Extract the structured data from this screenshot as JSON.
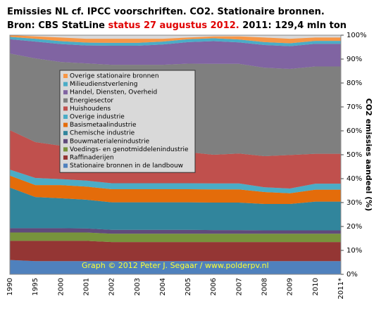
{
  "chart_data": {
    "type": "stacked_area",
    "title": "Emissies NL cf. IPCC voorschriften. CO2. Stationaire bronnen.",
    "source": "Bron: CBS StatLine",
    "status": "status 27 augustus 2012.",
    "total": "2011: 129,4 mln ton",
    "ylabel": "CO2 emissies aandeel (%)",
    "credit": "Graph © 2012 Peter J. Segaar / www.polderpv.nl",
    "categories": [
      "1990",
      "1995",
      "2000",
      "2001",
      "2002",
      "2003",
      "2004",
      "2005",
      "2006",
      "2007",
      "2008",
      "2009",
      "2010",
      "2011*"
    ],
    "ylim": [
      0,
      100
    ],
    "yticks": [
      {
        "value": 0,
        "label": "0%"
      },
      {
        "value": 10,
        "label": "10%"
      },
      {
        "value": 20,
        "label": "20%"
      },
      {
        "value": 30,
        "label": "30%"
      },
      {
        "value": 40,
        "label": "40%"
      },
      {
        "value": 50,
        "label": "50%"
      },
      {
        "value": 60,
        "label": "60%"
      },
      {
        "value": 70,
        "label": "70%"
      },
      {
        "value": 80,
        "label": "80%"
      },
      {
        "value": 90,
        "label": "90%"
      },
      {
        "value": 100,
        "label": "100%"
      }
    ],
    "series": [
      {
        "name": "Stationaire bronnen in de landbouw",
        "color": "#4f81bd",
        "values": [
          6,
          5.5,
          5.5,
          5.5,
          5.5,
          5.5,
          5.5,
          5.5,
          5.5,
          5.5,
          5.5,
          5.5,
          5.5,
          5.5
        ]
      },
      {
        "name": "Raffinaderijen",
        "color": "#943634",
        "values": [
          8,
          8.5,
          8.5,
          8.5,
          8,
          8,
          8,
          8,
          8,
          8,
          8,
          8,
          8,
          8
        ]
      },
      {
        "name": "Voedings- en genotmiddelenindustrie",
        "color": "#77933c",
        "values": [
          3.5,
          3.5,
          3.5,
          3.5,
          3.5,
          3.5,
          3.5,
          3.5,
          3.5,
          3.5,
          3.5,
          3.5,
          3.5,
          3.5
        ]
      },
      {
        "name": "Bouwmaterialenindustrie",
        "color": "#604a7b",
        "values": [
          1.8,
          1.8,
          1.8,
          1.7,
          1.6,
          1.6,
          1.6,
          1.6,
          1.5,
          1.5,
          1.4,
          1.4,
          1.4,
          1.4
        ]
      },
      {
        "name": "Chemische industrie",
        "color": "#31859c",
        "values": [
          17,
          13,
          12.5,
          12,
          11.5,
          11.5,
          11.5,
          11.5,
          11.5,
          11.5,
          11,
          11,
          12,
          12
        ]
      },
      {
        "name": "Basismetaalindustrie",
        "color": "#e46c0a",
        "values": [
          5,
          5,
          5.5,
          5.5,
          5.5,
          5.5,
          5.5,
          5.5,
          5.5,
          5.5,
          5,
          4.5,
          5,
          5
        ]
      },
      {
        "name": "Overige industrie",
        "color": "#4bacc6",
        "values": [
          2.5,
          3,
          2.5,
          2.5,
          2.5,
          2.5,
          2.5,
          2.5,
          2.5,
          2.5,
          2,
          2,
          2.5,
          2.5
        ]
      },
      {
        "name": "Huishoudens",
        "color": "#c0504d",
        "values": [
          16.5,
          15,
          14,
          13,
          13,
          12.5,
          12.5,
          13,
          12,
          12.5,
          13,
          14,
          12.5,
          12.5
        ]
      },
      {
        "name": "Energiesector",
        "color": "#7f7f7f",
        "values": [
          32,
          35,
          35,
          36,
          36.5,
          37,
          37,
          37,
          38,
          37.5,
          37,
          36,
          36.5,
          36.5
        ]
      },
      {
        "name": "Handel, Diensten, Overheid",
        "color": "#8064a2",
        "values": [
          6,
          7,
          7.5,
          7.5,
          8,
          8,
          8.5,
          9,
          9.5,
          9,
          9.5,
          9.5,
          9.5,
          9.5
        ]
      },
      {
        "name": "Milieudienstverlening",
        "color": "#4bacc6",
        "values": [
          1,
          1.2,
          1.2,
          1.2,
          1.2,
          1.2,
          1.2,
          1.2,
          1.2,
          1.2,
          1.2,
          1.2,
          1.2,
          1.2
        ]
      },
      {
        "name": "Overige stationaire bronnen",
        "color": "#f79646",
        "values": [
          0.7,
          1,
          1.5,
          1.6,
          1.7,
          1.7,
          1.2,
          0.7,
          0.8,
          1.3,
          1.9,
          1.9,
          1.4,
          1.4
        ]
      }
    ]
  }
}
